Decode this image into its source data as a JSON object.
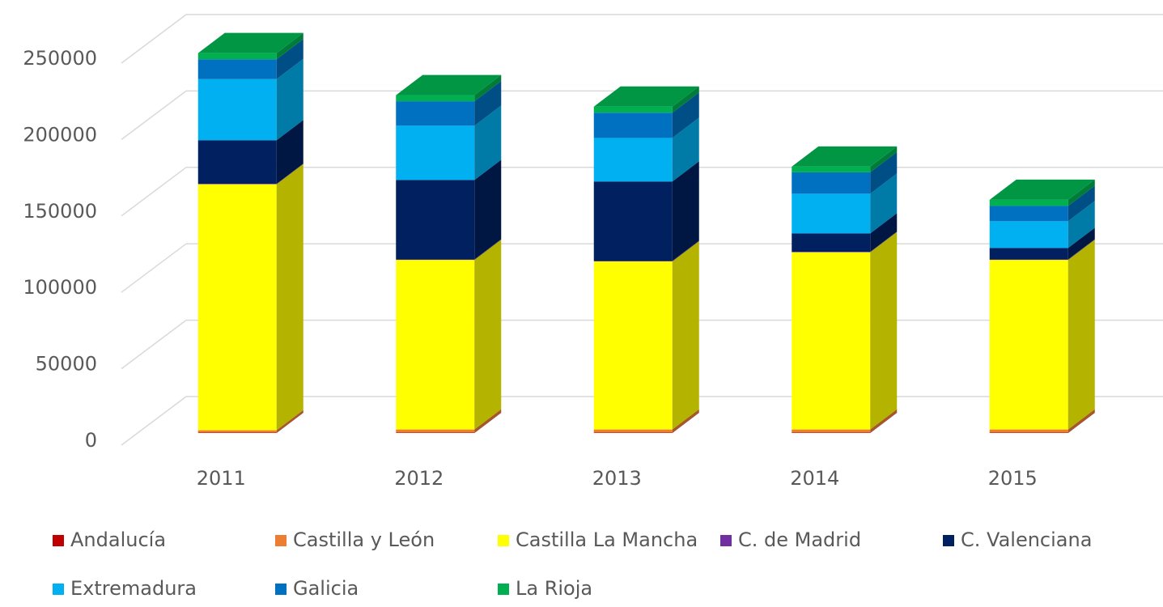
{
  "chart_data": {
    "type": "bar3d_stacked",
    "categories": [
      "2011",
      "2012",
      "2013",
      "2014",
      "2015"
    ],
    "series": [
      {
        "name": "Andalucía",
        "color": "#c00000",
        "values": [
          300,
          300,
          300,
          300,
          300
        ]
      },
      {
        "name": "Castilla y León",
        "color": "#ed7d31",
        "values": [
          1500,
          2000,
          2000,
          2000,
          2000
        ]
      },
      {
        "name": "Castilla La Mancha",
        "color": "#ffff00",
        "values": [
          161000,
          111000,
          110000,
          116000,
          111000
        ]
      },
      {
        "name": "C. de Madrid",
        "color": "#7030a0",
        "values": [
          300,
          300,
          300,
          300,
          300
        ]
      },
      {
        "name": "C. Valenciana",
        "color": "#002060",
        "values": [
          28500,
          52000,
          52000,
          12000,
          7500
        ]
      },
      {
        "name": "Extremadura",
        "color": "#00b0f0",
        "values": [
          40000,
          35500,
          28500,
          26000,
          17500
        ]
      },
      {
        "name": "Galicia",
        "color": "#0070c0",
        "values": [
          13000,
          16000,
          16500,
          14000,
          10000
        ]
      },
      {
        "name": "La Rioja",
        "color": "#00b050",
        "values": [
          4000,
          4000,
          4000,
          3700,
          4000
        ]
      }
    ],
    "ylim": [
      0,
      250000
    ],
    "yticks": [
      0,
      50000,
      100000,
      150000,
      200000,
      250000
    ],
    "grid": true
  }
}
